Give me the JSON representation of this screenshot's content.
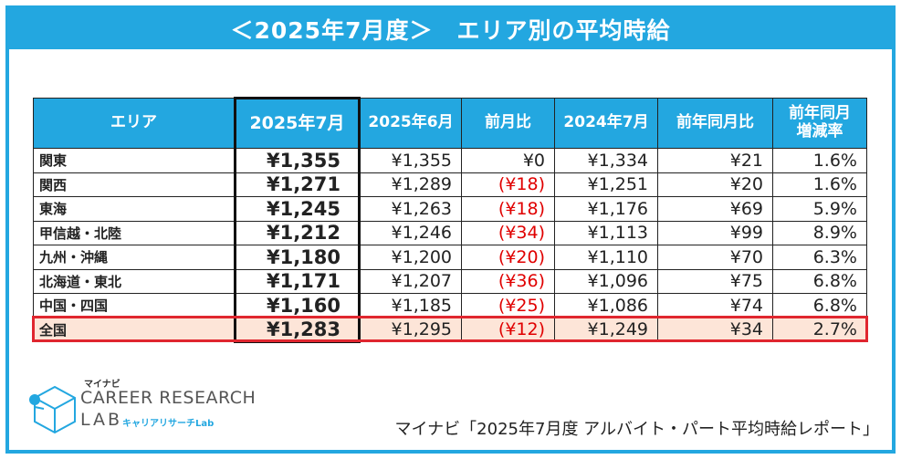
{
  "title": "＜2025年7月度＞　エリア別の平均時給",
  "table": {
    "headers": [
      "エリア",
      "2025年7月",
      "2025年6月",
      "前月比",
      "2024年7月",
      "前年同月比",
      "前年同月\n増減率"
    ],
    "rows": [
      {
        "area": "関東",
        "jul2025": "¥1,355",
        "jun2025": "¥1,355",
        "mom": "¥0",
        "jul2024": "¥1,334",
        "yoy": "¥21",
        "rate": "1.6%",
        "mom_negative": false
      },
      {
        "area": "関西",
        "jul2025": "¥1,271",
        "jun2025": "¥1,289",
        "mom": "(¥18)",
        "jul2024": "¥1,251",
        "yoy": "¥20",
        "rate": "1.6%",
        "mom_negative": true
      },
      {
        "area": "東海",
        "jul2025": "¥1,245",
        "jun2025": "¥1,263",
        "mom": "(¥18)",
        "jul2024": "¥1,176",
        "yoy": "¥69",
        "rate": "5.9%",
        "mom_negative": true
      },
      {
        "area": "甲信越・北陸",
        "jul2025": "¥1,212",
        "jun2025": "¥1,246",
        "mom": "(¥34)",
        "jul2024": "¥1,113",
        "yoy": "¥99",
        "rate": "8.9%",
        "mom_negative": true
      },
      {
        "area": "九州・沖縄",
        "jul2025": "¥1,180",
        "jun2025": "¥1,200",
        "mom": "(¥20)",
        "jul2024": "¥1,110",
        "yoy": "¥70",
        "rate": "6.3%",
        "mom_negative": true
      },
      {
        "area": "北海道・東北",
        "jul2025": "¥1,171",
        "jun2025": "¥1,207",
        "mom": "(¥36)",
        "jul2024": "¥1,096",
        "yoy": "¥75",
        "rate": "6.8%",
        "mom_negative": true
      },
      {
        "area": "中国・四国",
        "jul2025": "¥1,160",
        "jun2025": "¥1,185",
        "mom": "(¥25)",
        "jul2024": "¥1,086",
        "yoy": "¥74",
        "rate": "6.8%",
        "mom_negative": true
      },
      {
        "area": "全国",
        "jul2025": "¥1,283",
        "jun2025": "¥1,295",
        "mom": "(¥12)",
        "jul2024": "¥1,249",
        "yoy": "¥34",
        "rate": "2.7%",
        "mom_negative": true
      }
    ]
  },
  "logo": {
    "small": "マイナビ",
    "main": "CAREER RESEARCH",
    "lab": "LAB",
    "sub": "キャリアリサーチLab"
  },
  "source": "マイナビ「2025年7月度 アルバイト・パート平均時給レポート」",
  "colors": {
    "accent": "#23a7e0",
    "negative": "#e00000",
    "highlight": "#e0262f",
    "total_row": "#fde5d8"
  }
}
